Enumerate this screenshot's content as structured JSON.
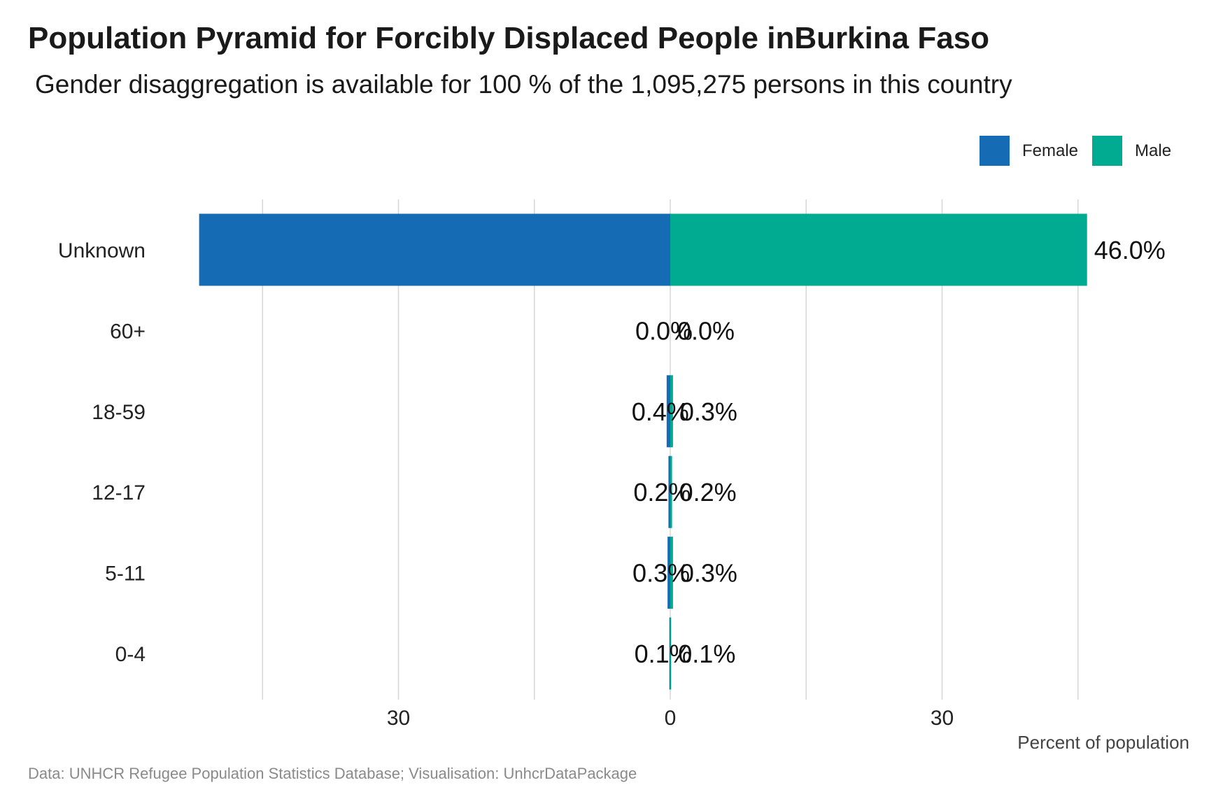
{
  "chart_data": {
    "type": "bar",
    "orientation": "horizontal-pyramid",
    "title": "Population Pyramid for Forcibly Displaced People inBurkina Faso",
    "subtitle": "Gender disaggregation is available for 100 % of the 1,095,275 persons in this country",
    "categories": [
      "Unknown",
      "60+",
      "18-59",
      "12-17",
      "5-11",
      "0-4"
    ],
    "series": [
      {
        "name": "Female",
        "color": "#156CB4",
        "values": [
          52.0,
          0.0,
          0.4,
          0.2,
          0.3,
          0.1
        ],
        "labels": [
          "",
          "0.0%",
          "0.4%",
          "0.2%",
          "0.3%",
          "0.1%"
        ]
      },
      {
        "name": "Male",
        "color": "#00AB92",
        "values": [
          46.0,
          0.0,
          0.3,
          0.2,
          0.3,
          0.1
        ],
        "labels": [
          "46.0%",
          "0.0%",
          "0.3%",
          "0.2%",
          "0.3%",
          "0.1%"
        ]
      }
    ],
    "x_ticks": [
      {
        "value": -30,
        "label": "30"
      },
      {
        "value": 0,
        "label": "0"
      },
      {
        "value": 30,
        "label": "30"
      }
    ],
    "gridlines": [
      -45,
      -30,
      -15,
      0,
      15,
      30,
      45
    ],
    "xlim": [
      -52,
      46
    ],
    "xlabel": "Percent of population",
    "ylabel": "",
    "grid": true,
    "legend": "top-right"
  },
  "caption": "Data: UNHCR Refugee Population Statistics Database; Visualisation: UnhcrDataPackage"
}
